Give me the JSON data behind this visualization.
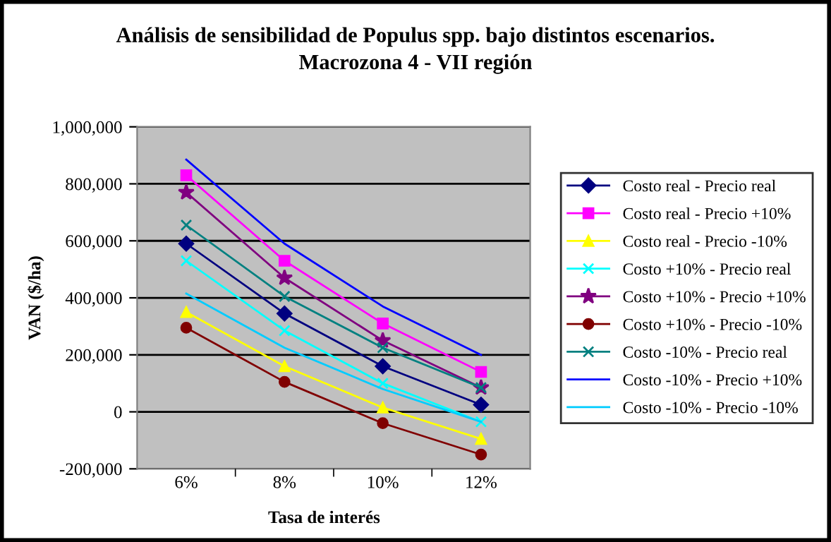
{
  "chart_data": {
    "type": "line",
    "title": "Análisis de sensibilidad de Populus spp. bajo distintos escenarios.\nMacrozona 4 - VII región",
    "xlabel": "Tasa de interés",
    "ylabel": "VAN ($/ha)",
    "categories": [
      "6%",
      "8%",
      "10%",
      "12%"
    ],
    "ylim": [
      -200000,
      1000000
    ],
    "yticks": [
      {
        "value": -200000,
        "label": "-200,000"
      },
      {
        "value": 0,
        "label": "0"
      },
      {
        "value": 200000,
        "label": "200,000"
      },
      {
        "value": 400000,
        "label": "400,000"
      },
      {
        "value": 600000,
        "label": "600,000"
      },
      {
        "value": 800000,
        "label": "800,000"
      },
      {
        "value": 1000000,
        "label": "1,000,000"
      }
    ],
    "grid": "y",
    "legend": "right",
    "series": [
      {
        "name": "Costo real - Precio real",
        "color": "#000080",
        "marker": "diamond",
        "values": [
          590000,
          345000,
          160000,
          25000
        ]
      },
      {
        "name": "Costo real - Precio +10%",
        "color": "#ff00ff",
        "marker": "square",
        "values": [
          830000,
          530000,
          310000,
          140000
        ]
      },
      {
        "name": "Costo real - Precio -10%",
        "color": "#ffff00",
        "marker": "triangle",
        "values": [
          350000,
          160000,
          15000,
          -95000
        ]
      },
      {
        "name": "Costo +10% - Precio real",
        "color": "#00ffff",
        "marker": "cross",
        "values": [
          530000,
          285000,
          100000,
          -35000
        ]
      },
      {
        "name": "Costo +10% - Precio +10%",
        "color": "#800080",
        "marker": "star",
        "values": [
          770000,
          470000,
          250000,
          85000
        ]
      },
      {
        "name": "Costo +10% - Precio -10%",
        "color": "#800000",
        "marker": "circle",
        "values": [
          295000,
          105000,
          -40000,
          -150000
        ]
      },
      {
        "name": "Costo -10% - Precio real",
        "color": "#008080",
        "marker": "cross",
        "values": [
          655000,
          405000,
          225000,
          85000
        ]
      },
      {
        "name": "Costo -10% - Precio +10%",
        "color": "#0000ff",
        "marker": "none",
        "values": [
          885000,
          590000,
          370000,
          200000
        ]
      },
      {
        "name": "Costo -10% - Precio -10%",
        "color": "#00ccff",
        "marker": "none",
        "values": [
          415000,
          225000,
          80000,
          -35000
        ]
      }
    ]
  }
}
